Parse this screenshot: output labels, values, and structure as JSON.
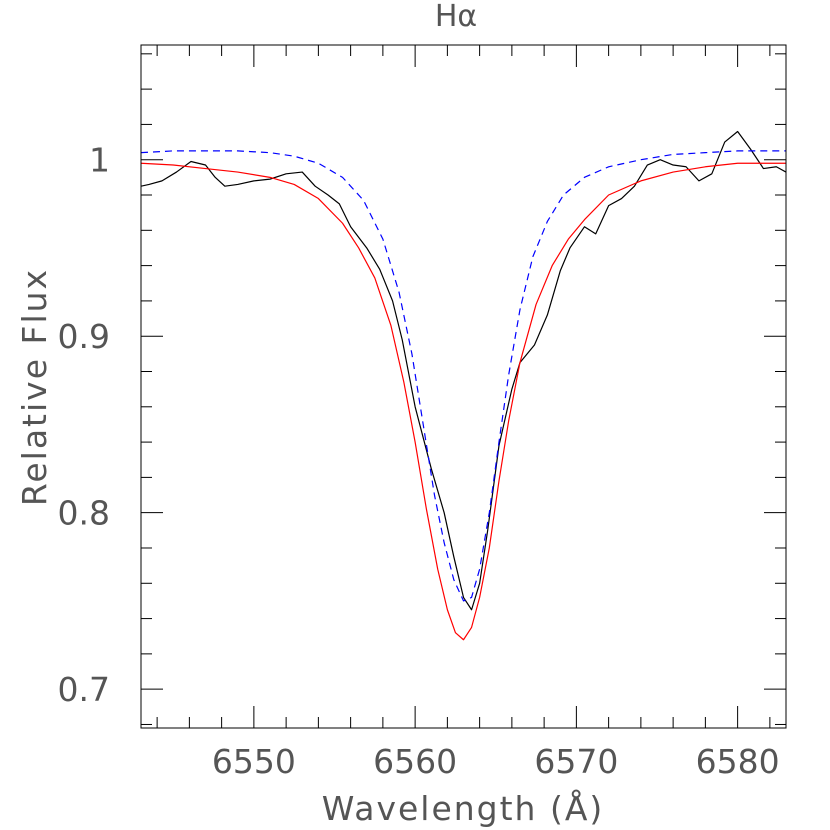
{
  "chart_data": {
    "type": "line",
    "title": "Hα",
    "xlabel": "Wavelength (Å)",
    "ylabel": "Relative Flux",
    "xlim": [
      6543,
      6583
    ],
    "ylim": [
      0.678,
      1.065
    ],
    "x_ticks": [
      6550,
      6560,
      6570,
      6580
    ],
    "x_tick_labels": [
      "6550",
      "6560",
      "6570",
      "6580"
    ],
    "y_ticks": [
      0.7,
      0.8,
      0.9,
      1.0
    ],
    "y_tick_labels": [
      "0.7",
      "0.8",
      "0.9",
      "1"
    ],
    "x_minor_step": 2,
    "y_minor_step": 0.02,
    "grid": false,
    "legend": "none",
    "series": [
      {
        "color": "#000000",
        "style": "solid",
        "points": [
          [
            6543.0,
            0.985
          ],
          [
            6543.5,
            0.986
          ],
          [
            6544.3,
            0.988
          ],
          [
            6545.2,
            0.993
          ],
          [
            6546.1,
            0.999
          ],
          [
            6547.0,
            0.997
          ],
          [
            6547.6,
            0.99
          ],
          [
            6548.2,
            0.985
          ],
          [
            6549.0,
            0.986
          ],
          [
            6550.0,
            0.988
          ],
          [
            6551.0,
            0.989
          ],
          [
            6552.0,
            0.992
          ],
          [
            6553.0,
            0.993
          ],
          [
            6553.8,
            0.985
          ],
          [
            6554.6,
            0.98
          ],
          [
            6555.3,
            0.975
          ],
          [
            6556.0,
            0.962
          ],
          [
            6557.0,
            0.95
          ],
          [
            6557.8,
            0.938
          ],
          [
            6558.6,
            0.92
          ],
          [
            6559.2,
            0.898
          ],
          [
            6560.0,
            0.86
          ],
          [
            6561.0,
            0.825
          ],
          [
            6561.8,
            0.8
          ],
          [
            6562.4,
            0.775
          ],
          [
            6563.0,
            0.752
          ],
          [
            6563.5,
            0.745
          ],
          [
            6564.0,
            0.76
          ],
          [
            6564.5,
            0.79
          ],
          [
            6565.2,
            0.838
          ],
          [
            6566.0,
            0.87
          ],
          [
            6566.5,
            0.885
          ],
          [
            6567.4,
            0.895
          ],
          [
            6568.2,
            0.912
          ],
          [
            6569.0,
            0.937
          ],
          [
            6569.6,
            0.95
          ],
          [
            6570.5,
            0.962
          ],
          [
            6571.2,
            0.958
          ],
          [
            6572.0,
            0.974
          ],
          [
            6572.8,
            0.978
          ],
          [
            6573.6,
            0.985
          ],
          [
            6574.4,
            0.997
          ],
          [
            6575.2,
            1.0
          ],
          [
            6576.0,
            0.997
          ],
          [
            6576.8,
            0.996
          ],
          [
            6577.6,
            0.988
          ],
          [
            6578.4,
            0.992
          ],
          [
            6579.2,
            1.01
          ],
          [
            6580.0,
            1.016
          ],
          [
            6580.8,
            1.006
          ],
          [
            6581.6,
            0.995
          ],
          [
            6582.4,
            0.996
          ],
          [
            6583.0,
            0.993
          ]
        ]
      },
      {
        "color": "#ff0000",
        "style": "solid",
        "points": [
          [
            6543.0,
            0.998
          ],
          [
            6545.0,
            0.997
          ],
          [
            6547.0,
            0.995
          ],
          [
            6549.0,
            0.993
          ],
          [
            6551.0,
            0.99
          ],
          [
            6552.5,
            0.986
          ],
          [
            6554.0,
            0.978
          ],
          [
            6555.5,
            0.964
          ],
          [
            6556.5,
            0.95
          ],
          [
            6557.5,
            0.933
          ],
          [
            6558.5,
            0.906
          ],
          [
            6559.3,
            0.874
          ],
          [
            6560.0,
            0.84
          ],
          [
            6560.7,
            0.802
          ],
          [
            6561.4,
            0.768
          ],
          [
            6562.0,
            0.745
          ],
          [
            6562.5,
            0.732
          ],
          [
            6563.0,
            0.728
          ],
          [
            6563.5,
            0.735
          ],
          [
            6564.0,
            0.752
          ],
          [
            6564.6,
            0.78
          ],
          [
            6565.2,
            0.818
          ],
          [
            6565.8,
            0.852
          ],
          [
            6566.5,
            0.885
          ],
          [
            6567.5,
            0.918
          ],
          [
            6568.5,
            0.94
          ],
          [
            6569.5,
            0.955
          ],
          [
            6570.5,
            0.966
          ],
          [
            6572.0,
            0.98
          ],
          [
            6574.0,
            0.988
          ],
          [
            6576.0,
            0.993
          ],
          [
            6578.0,
            0.996
          ],
          [
            6580.0,
            0.998
          ],
          [
            6583.0,
            0.998
          ]
        ]
      },
      {
        "color": "#0000ff",
        "style": "dashed",
        "points": [
          [
            6543.0,
            1.004
          ],
          [
            6545.0,
            1.005
          ],
          [
            6547.0,
            1.005
          ],
          [
            6549.0,
            1.005
          ],
          [
            6551.0,
            1.004
          ],
          [
            6552.5,
            1.002
          ],
          [
            6554.0,
            0.998
          ],
          [
            6555.5,
            0.99
          ],
          [
            6556.8,
            0.977
          ],
          [
            6558.0,
            0.955
          ],
          [
            6559.0,
            0.925
          ],
          [
            6559.8,
            0.89
          ],
          [
            6560.5,
            0.85
          ],
          [
            6561.2,
            0.81
          ],
          [
            6561.8,
            0.783
          ],
          [
            6562.4,
            0.762
          ],
          [
            6563.0,
            0.75
          ],
          [
            6563.5,
            0.752
          ],
          [
            6564.0,
            0.768
          ],
          [
            6564.6,
            0.8
          ],
          [
            6565.2,
            0.84
          ],
          [
            6565.8,
            0.878
          ],
          [
            6566.5,
            0.915
          ],
          [
            6567.3,
            0.945
          ],
          [
            6568.2,
            0.965
          ],
          [
            6569.2,
            0.98
          ],
          [
            6570.5,
            0.99
          ],
          [
            6572.0,
            0.996
          ],
          [
            6574.0,
            1.0
          ],
          [
            6576.0,
            1.003
          ],
          [
            6578.0,
            1.004
          ],
          [
            6580.0,
            1.005
          ],
          [
            6583.0,
            1.005
          ]
        ]
      }
    ]
  }
}
